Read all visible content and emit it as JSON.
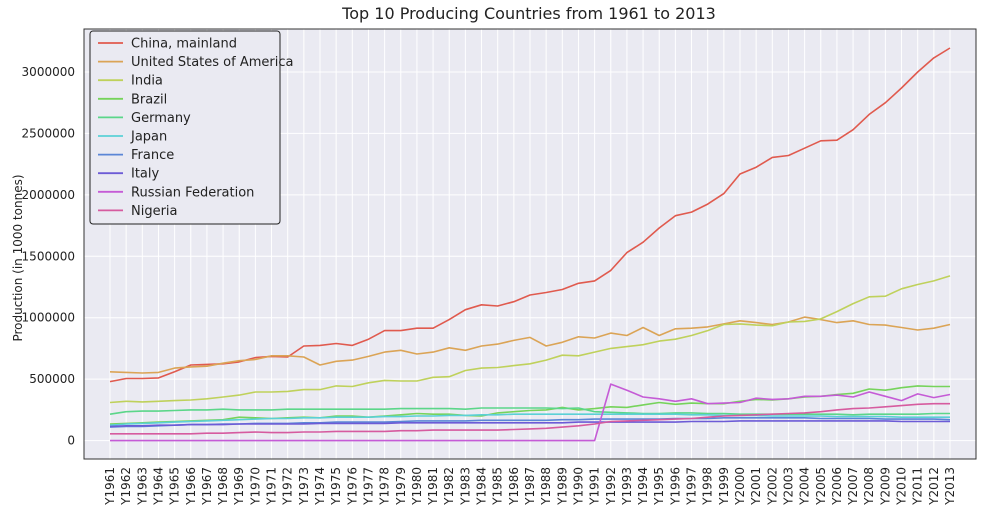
{
  "chart_data": {
    "type": "line",
    "title": "Top 10 Producing Countries from 1961 to 2013",
    "xlabel": "",
    "ylabel": "Production (in 1000 tonnes)",
    "ylim": [
      -150000,
      3350000
    ],
    "yticks": [
      0,
      500000,
      1000000,
      1500000,
      2000000,
      2500000,
      3000000
    ],
    "grid": true,
    "legend_position": "top-left",
    "x": [
      "Y1961",
      "Y1962",
      "Y1963",
      "Y1964",
      "Y1965",
      "Y1966",
      "Y1967",
      "Y1968",
      "Y1969",
      "Y1970",
      "Y1971",
      "Y1972",
      "Y1973",
      "Y1974",
      "Y1975",
      "Y1976",
      "Y1977",
      "Y1978",
      "Y1979",
      "Y1980",
      "Y1981",
      "Y1982",
      "Y1983",
      "Y1984",
      "Y1985",
      "Y1986",
      "Y1987",
      "Y1988",
      "Y1989",
      "Y1990",
      "Y1991",
      "Y1992",
      "Y1993",
      "Y1994",
      "Y1995",
      "Y1996",
      "Y1997",
      "Y1998",
      "Y1999",
      "Y2000",
      "Y2001",
      "Y2002",
      "Y2003",
      "Y2004",
      "Y2005",
      "Y2006",
      "Y2007",
      "Y2008",
      "Y2009",
      "Y2010",
      "Y2011",
      "Y2012",
      "Y2013"
    ],
    "series": [
      {
        "name": "China, mainland",
        "color": "#e05a4e",
        "values": [
          480000,
          505000,
          505000,
          510000,
          560000,
          615000,
          620000,
          625000,
          640000,
          675000,
          685000,
          680000,
          770000,
          775000,
          790000,
          775000,
          825000,
          895000,
          895000,
          915000,
          915000,
          985000,
          1065000,
          1105000,
          1095000,
          1130000,
          1185000,
          1205000,
          1230000,
          1280000,
          1300000,
          1385000,
          1530000,
          1615000,
          1730000,
          1830000,
          1860000,
          1925000,
          2010000,
          2170000,
          2225000,
          2305000,
          2320000,
          2380000,
          2440000,
          2445000,
          2530000,
          2655000,
          2750000,
          2870000,
          3000000,
          3115000,
          3195000
        ]
      },
      {
        "name": "United States of America",
        "color": "#dba456",
        "values": [
          560000,
          555000,
          550000,
          555000,
          590000,
          600000,
          605000,
          630000,
          650000,
          660000,
          690000,
          690000,
          680000,
          615000,
          645000,
          655000,
          685000,
          720000,
          735000,
          705000,
          720000,
          755000,
          735000,
          770000,
          785000,
          815000,
          840000,
          770000,
          800000,
          845000,
          835000,
          875000,
          855000,
          920000,
          855000,
          910000,
          915000,
          925000,
          950000,
          975000,
          960000,
          945000,
          965000,
          1005000,
          985000,
          960000,
          975000,
          945000,
          940000,
          920000,
          900000,
          915000,
          945000
        ]
      },
      {
        "name": "India",
        "color": "#bfd15b",
        "values": [
          310000,
          320000,
          315000,
          320000,
          325000,
          330000,
          340000,
          355000,
          370000,
          395000,
          395000,
          400000,
          415000,
          415000,
          445000,
          440000,
          470000,
          490000,
          485000,
          485000,
          515000,
          520000,
          570000,
          590000,
          595000,
          610000,
          625000,
          655000,
          695000,
          690000,
          720000,
          750000,
          765000,
          780000,
          810000,
          825000,
          855000,
          895000,
          945000,
          950000,
          940000,
          935000,
          965000,
          970000,
          990000,
          1050000,
          1115000,
          1170000,
          1175000,
          1235000,
          1270000,
          1300000,
          1340000
        ]
      },
      {
        "name": "Brazil",
        "color": "#76d35b",
        "values": [
          135000,
          140000,
          145000,
          150000,
          155000,
          160000,
          165000,
          170000,
          190000,
          185000,
          180000,
          185000,
          190000,
          185000,
          200000,
          200000,
          190000,
          200000,
          210000,
          220000,
          215000,
          215000,
          205000,
          200000,
          225000,
          235000,
          245000,
          250000,
          270000,
          250000,
          260000,
          275000,
          270000,
          290000,
          310000,
          295000,
          305000,
          300000,
          300000,
          320000,
          335000,
          330000,
          340000,
          355000,
          360000,
          375000,
          385000,
          420000,
          410000,
          430000,
          445000,
          440000,
          440000
        ]
      },
      {
        "name": "Germany",
        "color": "#5bd689",
        "values": [
          215000,
          235000,
          240000,
          240000,
          245000,
          250000,
          250000,
          255000,
          250000,
          250000,
          250000,
          255000,
          255000,
          255000,
          255000,
          255000,
          255000,
          255000,
          260000,
          260000,
          260000,
          260000,
          255000,
          265000,
          265000,
          265000,
          265000,
          265000,
          260000,
          265000,
          235000,
          230000,
          225000,
          220000,
          220000,
          225000,
          225000,
          220000,
          220000,
          215000,
          215000,
          215000,
          215000,
          215000,
          215000,
          215000,
          210000,
          215000,
          215000,
          215000,
          215000,
          220000,
          220000
        ]
      },
      {
        "name": "Japan",
        "color": "#5bd0d6",
        "values": [
          125000,
          135000,
          140000,
          145000,
          150000,
          155000,
          160000,
          165000,
          170000,
          175000,
          180000,
          180000,
          185000,
          185000,
          190000,
          190000,
          190000,
          195000,
          195000,
          200000,
          200000,
          205000,
          205000,
          210000,
          210000,
          215000,
          215000,
          215000,
          215000,
          215000,
          215000,
          215000,
          215000,
          215000,
          215000,
          215000,
          210000,
          210000,
          205000,
          205000,
          205000,
          200000,
          200000,
          200000,
          200000,
          195000,
          195000,
          195000,
          195000,
          190000,
          190000,
          190000,
          190000
        ]
      },
      {
        "name": "France",
        "color": "#5b86d6",
        "values": [
          110000,
          115000,
          115000,
          120000,
          125000,
          130000,
          130000,
          135000,
          135000,
          140000,
          140000,
          140000,
          145000,
          145000,
          150000,
          150000,
          150000,
          150000,
          155000,
          160000,
          160000,
          160000,
          160000,
          165000,
          165000,
          165000,
          165000,
          165000,
          170000,
          170000,
          175000,
          175000,
          175000,
          175000,
          175000,
          180000,
          180000,
          180000,
          185000,
          185000,
          185000,
          185000,
          185000,
          185000,
          180000,
          180000,
          180000,
          180000,
          175000,
          175000,
          175000,
          175000,
          170000
        ]
      },
      {
        "name": "Italy",
        "color": "#6c5bd6",
        "values": [
          115000,
          120000,
          120000,
          125000,
          125000,
          130000,
          130000,
          130000,
          135000,
          135000,
          135000,
          135000,
          135000,
          140000,
          140000,
          140000,
          140000,
          140000,
          145000,
          145000,
          145000,
          145000,
          145000,
          145000,
          145000,
          145000,
          145000,
          145000,
          145000,
          150000,
          150000,
          150000,
          150000,
          150000,
          150000,
          150000,
          155000,
          155000,
          155000,
          160000,
          160000,
          160000,
          160000,
          160000,
          160000,
          160000,
          160000,
          160000,
          160000,
          155000,
          155000,
          155000,
          155000
        ]
      },
      {
        "name": "Russian Federation",
        "color": "#c55bd6",
        "values": [
          0,
          0,
          0,
          0,
          0,
          0,
          0,
          0,
          0,
          0,
          0,
          0,
          0,
          0,
          0,
          0,
          0,
          0,
          0,
          0,
          0,
          0,
          0,
          0,
          0,
          0,
          0,
          0,
          0,
          0,
          0,
          460000,
          410000,
          355000,
          340000,
          320000,
          340000,
          300000,
          305000,
          310000,
          345000,
          335000,
          340000,
          360000,
          360000,
          370000,
          355000,
          395000,
          360000,
          325000,
          380000,
          350000,
          375000
        ]
      },
      {
        "name": "Nigeria",
        "color": "#d65b9f",
        "values": [
          55000,
          55000,
          55000,
          55000,
          55000,
          55000,
          60000,
          60000,
          65000,
          70000,
          65000,
          65000,
          70000,
          70000,
          75000,
          75000,
          75000,
          75000,
          80000,
          80000,
          85000,
          85000,
          85000,
          85000,
          85000,
          90000,
          95000,
          100000,
          110000,
          120000,
          135000,
          155000,
          160000,
          165000,
          170000,
          175000,
          180000,
          190000,
          200000,
          205000,
          210000,
          215000,
          220000,
          225000,
          235000,
          250000,
          260000,
          265000,
          275000,
          285000,
          295000,
          300000,
          300000
        ]
      }
    ]
  }
}
